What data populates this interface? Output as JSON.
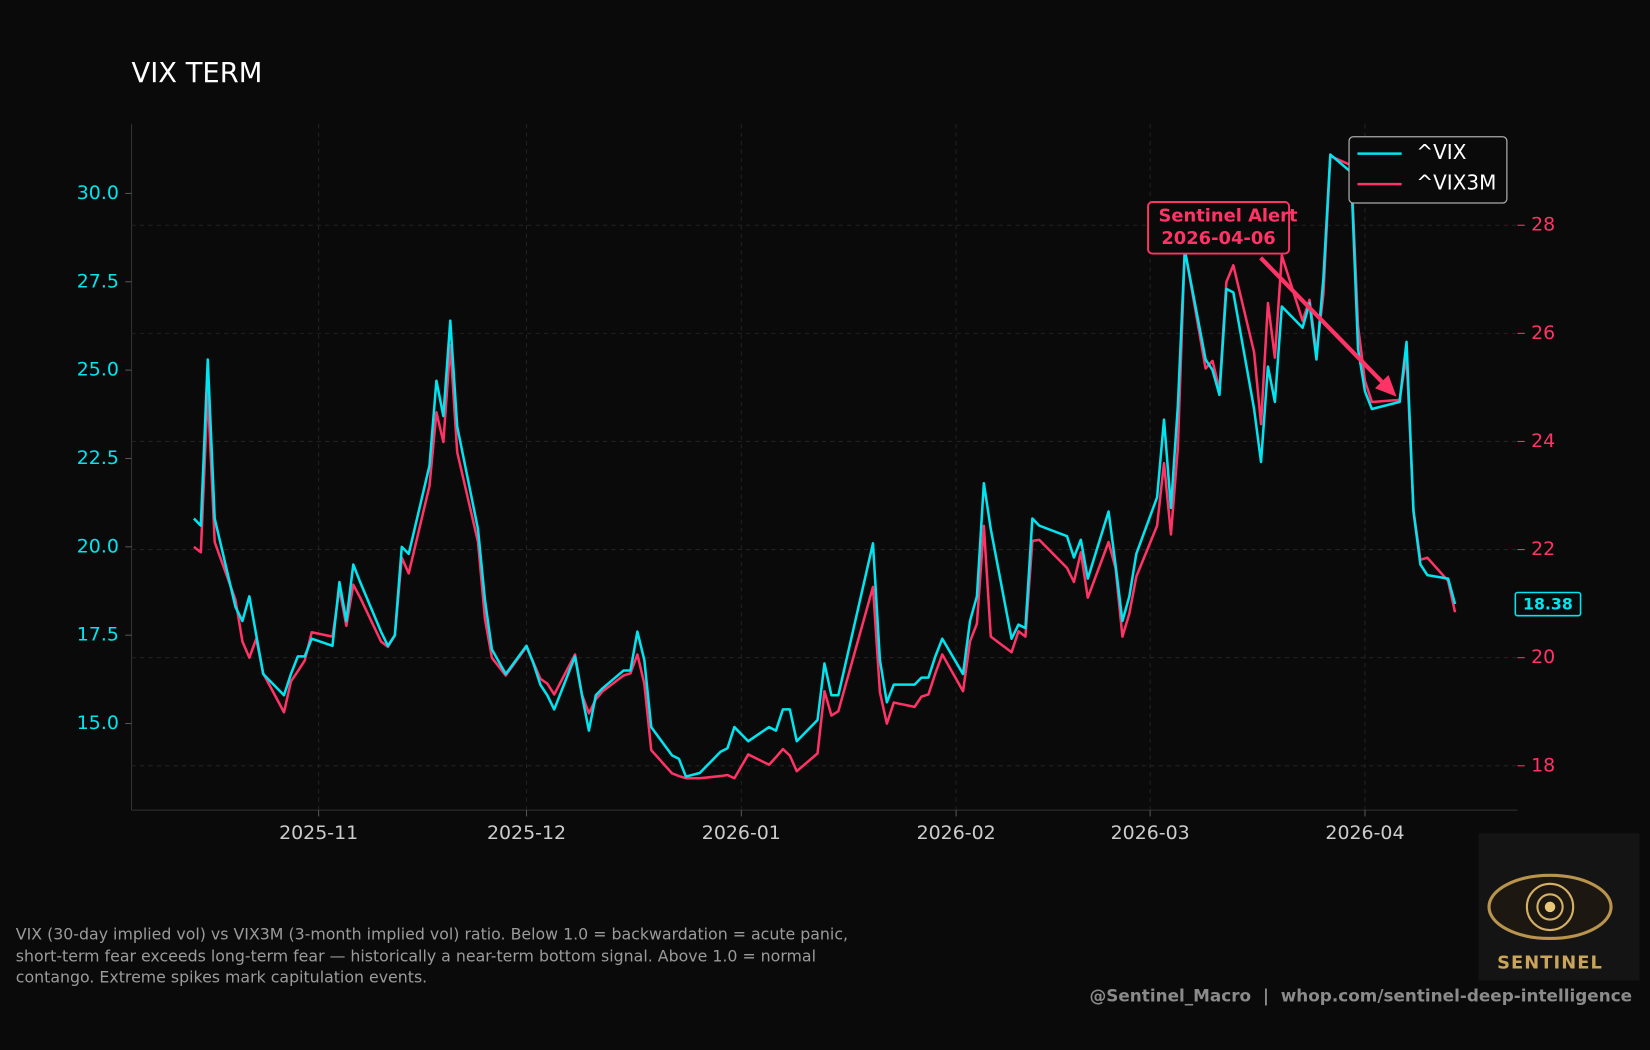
{
  "chart_data": {
    "type": "line",
    "title": "VIX TERM",
    "x": [
      "2025-10-14",
      "2025-10-15",
      "2025-10-16",
      "2025-10-17",
      "2025-10-20",
      "2025-10-21",
      "2025-10-22",
      "2025-10-23",
      "2025-10-24",
      "2025-10-27",
      "2025-10-28",
      "2025-10-29",
      "2025-10-30",
      "2025-10-31",
      "2025-11-03",
      "2025-11-04",
      "2025-11-05",
      "2025-11-06",
      "2025-11-07",
      "2025-11-10",
      "2025-11-11",
      "2025-11-12",
      "2025-11-13",
      "2025-11-14",
      "2025-11-17",
      "2025-11-18",
      "2025-11-19",
      "2025-11-20",
      "2025-11-21",
      "2025-11-24",
      "2025-11-25",
      "2025-11-26",
      "2025-11-28",
      "2025-12-01",
      "2025-12-02",
      "2025-12-03",
      "2025-12-04",
      "2025-12-05",
      "2025-12-08",
      "2025-12-09",
      "2025-12-10",
      "2025-12-11",
      "2025-12-12",
      "2025-12-15",
      "2025-12-16",
      "2025-12-17",
      "2025-12-18",
      "2025-12-19",
      "2025-12-22",
      "2025-12-23",
      "2025-12-24",
      "2025-12-26",
      "2025-12-29",
      "2025-12-30",
      "2025-12-31",
      "2026-01-02",
      "2026-01-05",
      "2026-01-06",
      "2026-01-07",
      "2026-01-08",
      "2026-01-09",
      "2026-01-12",
      "2026-01-13",
      "2026-01-14",
      "2026-01-15",
      "2026-01-20",
      "2026-01-21",
      "2026-01-22",
      "2026-01-23",
      "2026-01-26",
      "2026-01-27",
      "2026-01-28",
      "2026-01-29",
      "2026-01-30",
      "2026-02-02",
      "2026-02-03",
      "2026-02-04",
      "2026-02-05",
      "2026-02-06",
      "2026-02-09",
      "2026-02-10",
      "2026-02-11",
      "2026-02-12",
      "2026-02-13",
      "2026-02-17",
      "2026-02-18",
      "2026-02-19",
      "2026-02-20",
      "2026-02-23",
      "2026-02-24",
      "2026-02-25",
      "2026-02-26",
      "2026-02-27",
      "2026-03-02",
      "2026-03-03",
      "2026-03-04",
      "2026-03-05",
      "2026-03-06",
      "2026-03-09",
      "2026-03-10",
      "2026-03-11",
      "2026-03-12",
      "2026-03-13",
      "2026-03-16",
      "2026-03-17",
      "2026-03-18",
      "2026-03-19",
      "2026-03-20",
      "2026-03-23",
      "2026-03-24",
      "2026-03-25",
      "2026-03-26",
      "2026-03-27",
      "2026-03-30",
      "2026-03-31",
      "2026-04-01",
      "2026-04-02",
      "2026-04-06",
      "2026-04-07",
      "2026-04-08",
      "2026-04-09",
      "2026-04-10",
      "2026-04-13",
      "2026-04-14"
    ],
    "series": [
      {
        "name": "^VIX",
        "color": "#00e5f0",
        "axis": "y",
        "values": [
          20.8,
          20.6,
          25.3,
          20.8,
          18.3,
          17.9,
          18.6,
          17.5,
          16.4,
          15.8,
          16.4,
          16.9,
          16.9,
          17.4,
          17.2,
          19.0,
          17.9,
          19.5,
          19.0,
          17.6,
          17.2,
          17.5,
          20.0,
          19.8,
          22.3,
          24.7,
          23.7,
          26.4,
          23.4,
          20.5,
          18.5,
          17.1,
          16.4,
          17.2,
          16.7,
          16.1,
          15.8,
          15.4,
          16.9,
          15.8,
          14.8,
          15.8,
          16.0,
          16.5,
          16.5,
          17.6,
          16.8,
          14.9,
          14.1,
          14.0,
          13.5,
          13.6,
          14.2,
          14.3,
          14.9,
          14.5,
          14.9,
          14.8,
          15.4,
          15.4,
          14.5,
          15.1,
          16.7,
          15.8,
          15.8,
          20.1,
          16.8,
          15.6,
          16.1,
          16.1,
          16.3,
          16.3,
          16.9,
          17.4,
          16.4,
          17.9,
          18.6,
          21.8,
          20.5,
          17.4,
          17.8,
          17.7,
          20.8,
          20.6,
          20.3,
          19.7,
          20.2,
          19.1,
          21.0,
          19.5,
          17.9,
          18.6,
          19.8,
          21.4,
          23.6,
          21.1,
          24.0,
          28.4,
          25.3,
          25.0,
          24.3,
          27.3,
          27.2,
          23.9,
          22.4,
          25.1,
          24.1,
          26.8,
          26.2,
          26.9,
          25.3,
          27.6,
          31.1,
          30.6,
          25.6,
          24.4,
          23.9,
          24.1,
          25.8,
          21.0,
          19.5,
          19.2,
          19.1,
          18.38
        ]
      },
      {
        "name": "^VIX3M",
        "color": "#ff3366",
        "axis": "y2",
        "values": [
          22.05,
          21.95,
          24.93,
          22.14,
          21.07,
          20.3,
          20.0,
          20.35,
          19.71,
          18.99,
          19.56,
          19.75,
          19.95,
          20.47,
          20.39,
          21.27,
          20.59,
          21.35,
          21.11,
          20.3,
          20.2,
          20.41,
          21.85,
          21.56,
          23.18,
          24.54,
          23.99,
          25.78,
          23.8,
          22.14,
          20.72,
          20.0,
          19.67,
          20.2,
          19.91,
          19.61,
          19.52,
          19.32,
          20.06,
          19.32,
          18.97,
          19.23,
          19.38,
          19.67,
          19.71,
          20.06,
          19.52,
          18.29,
          17.86,
          17.81,
          17.77,
          17.77,
          17.81,
          17.83,
          17.77,
          18.21,
          18.02,
          18.16,
          18.31,
          18.19,
          17.9,
          18.23,
          19.38,
          18.93,
          19.01,
          21.31,
          19.36,
          18.78,
          19.17,
          19.09,
          19.28,
          19.32,
          19.71,
          20.06,
          19.38,
          20.3,
          20.63,
          22.44,
          20.39,
          20.1,
          20.49,
          20.39,
          22.16,
          22.18,
          21.66,
          21.4,
          21.95,
          21.11,
          22.14,
          21.66,
          20.39,
          20.82,
          21.5,
          22.44,
          23.6,
          22.28,
          23.89,
          27.55,
          25.35,
          25.49,
          24.96,
          26.95,
          27.26,
          25.65,
          24.32,
          26.56,
          25.55,
          27.44,
          26.23,
          26.62,
          25.65,
          26.72,
          29.28,
          29.11,
          26.13,
          25.12,
          24.73,
          24.77,
          25.59,
          22.73,
          21.81,
          21.85,
          21.42,
          20.84
        ]
      }
    ],
    "xlim": [
      "2025-10-05",
      "2026-04-23"
    ],
    "xticks": [
      {
        "value": "2025-11-01",
        "label": "2025-11"
      },
      {
        "value": "2025-12-01",
        "label": "2025-12"
      },
      {
        "value": "2026-01-01",
        "label": "2026-01"
      },
      {
        "value": "2026-02-01",
        "label": "2026-02"
      },
      {
        "value": "2026-03-01",
        "label": "2026-03"
      },
      {
        "value": "2026-04-01",
        "label": "2026-04"
      }
    ],
    "ylim": [
      12.55,
      31.96
    ],
    "yticks": [
      {
        "value": 15,
        "label": "15.0"
      },
      17.5,
      {
        "value": 20,
        "label": "20.0"
      },
      22.5,
      {
        "value": 25,
        "label": "25.0"
      },
      27.5,
      {
        "value": 30,
        "label": "30.0"
      }
    ],
    "y2lim": [
      17.18,
      29.87
    ],
    "y2ticks": [
      18,
      20,
      22,
      24,
      26,
      28
    ],
    "grid": true,
    "legend": "upper right",
    "annotation": {
      "title": "Sentinel Alert",
      "date": "2026-04-06"
    }
  },
  "caption": "VIX (30-day implied vol) vs VIX3M (3-month implied vol) ratio. Below 1.0 = backwardation = acute panic, short-term fear exceeds long-term fear — historically a near-term bottom signal. Above 1.0 = normal contango. Extreme spikes mark capitulation events.",
  "footer": "@Sentinel_Macro  |  whop.com/sentinel-deep-intelligence",
  "brand": "SENTINEL"
}
